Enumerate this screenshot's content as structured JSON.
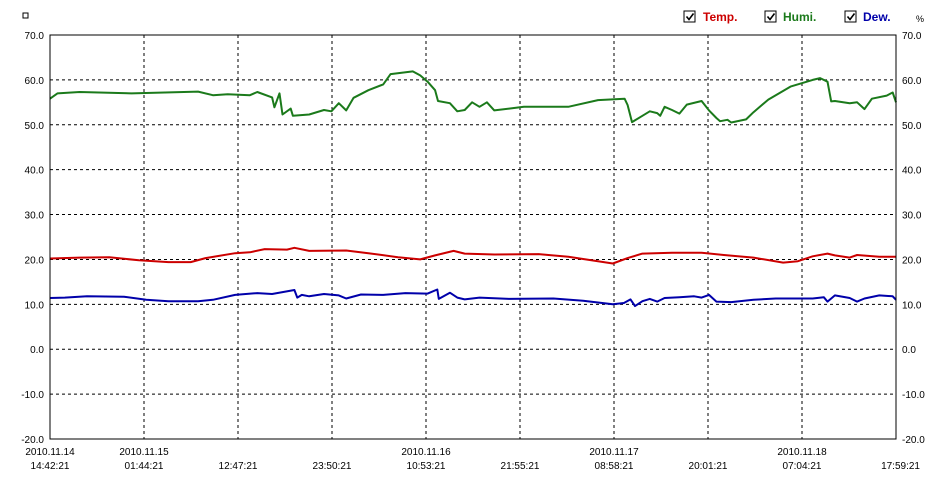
{
  "chart_data": {
    "type": "line",
    "ylim": [
      -20,
      70
    ],
    "y_ticks": [
      "70.0",
      "60.0",
      "50.0",
      "40.0",
      "30.0",
      "20.0",
      "10.0",
      "0.0",
      "-10.0",
      "-20.0"
    ],
    "right_unit": "%",
    "grid": true,
    "legend_position": "top-right",
    "x_range_hours": [
      0,
      114.25
    ],
    "x_ticks": [
      {
        "date": "2010.11.14",
        "time": "14:42:21"
      },
      {
        "date": "2010.11.15",
        "time": "01:44:21"
      },
      {
        "date": "",
        "time": "12:47:21"
      },
      {
        "date": "",
        "time": "23:50:21"
      },
      {
        "date": "2010.11.16",
        "time": "10:53:21"
      },
      {
        "date": "",
        "time": "21:55:21"
      },
      {
        "date": "2010.11.17",
        "time": "08:58:21"
      },
      {
        "date": "",
        "time": "20:01:21"
      },
      {
        "date": "2010.11.18",
        "time": "07:04:21"
      },
      {
        "date": "",
        "time": "17:59:21"
      }
    ],
    "series": [
      {
        "name": "Temp.",
        "color": "#cc0000",
        "checked": true,
        "points": [
          [
            0,
            20.2
          ],
          [
            4,
            20.4
          ],
          [
            8,
            20.5
          ],
          [
            12,
            19.8
          ],
          [
            16,
            19.4
          ],
          [
            19,
            19.4
          ],
          [
            21,
            20.3
          ],
          [
            25,
            21.4
          ],
          [
            27,
            21.6
          ],
          [
            29,
            22.3
          ],
          [
            32,
            22.2
          ],
          [
            33,
            22.6
          ],
          [
            35,
            21.9
          ],
          [
            40,
            22.0
          ],
          [
            43,
            21.4
          ],
          [
            47,
            20.5
          ],
          [
            50,
            20.0
          ],
          [
            52,
            20.9
          ],
          [
            54.5,
            21.9
          ],
          [
            56,
            21.3
          ],
          [
            60,
            21.1
          ],
          [
            66,
            21.2
          ],
          [
            70,
            20.6
          ],
          [
            76,
            19.1
          ],
          [
            78,
            20.3
          ],
          [
            80,
            21.3
          ],
          [
            84,
            21.5
          ],
          [
            88,
            21.5
          ],
          [
            91,
            21.0
          ],
          [
            95,
            20.4
          ],
          [
            99,
            19.3
          ],
          [
            101,
            19.6
          ],
          [
            103,
            20.7
          ],
          [
            105,
            21.3
          ],
          [
            106,
            20.9
          ],
          [
            108,
            20.4
          ],
          [
            109,
            21.0
          ],
          [
            112,
            20.6
          ],
          [
            114.25,
            20.6
          ]
        ]
      },
      {
        "name": "Humi.",
        "color": "#1b7a1b",
        "checked": true,
        "points": [
          [
            0,
            55.8
          ],
          [
            1,
            57.0
          ],
          [
            4,
            57.3
          ],
          [
            11,
            57.0
          ],
          [
            20,
            57.4
          ],
          [
            22,
            56.6
          ],
          [
            24,
            56.8
          ],
          [
            27,
            56.6
          ],
          [
            28,
            57.3
          ],
          [
            30,
            56.1
          ],
          [
            30.3,
            53.9
          ],
          [
            31,
            57.0
          ],
          [
            31.4,
            52.3
          ],
          [
            32.5,
            53.6
          ],
          [
            32.8,
            52.0
          ],
          [
            35,
            52.3
          ],
          [
            37,
            53.3
          ],
          [
            38,
            53.0
          ],
          [
            39,
            54.8
          ],
          [
            40,
            53.2
          ],
          [
            41,
            56.0
          ],
          [
            43,
            57.7
          ],
          [
            45,
            59.0
          ],
          [
            46,
            61.3
          ],
          [
            49,
            61.9
          ],
          [
            50,
            61.0
          ],
          [
            51,
            59.6
          ],
          [
            52,
            57.7
          ],
          [
            52.4,
            55.3
          ],
          [
            54,
            54.8
          ],
          [
            55,
            53.0
          ],
          [
            56,
            53.3
          ],
          [
            57,
            55.0
          ],
          [
            58,
            54.0
          ],
          [
            59,
            55.0
          ],
          [
            60,
            53.2
          ],
          [
            62,
            53.6
          ],
          [
            64,
            54.0
          ],
          [
            70,
            54.0
          ],
          [
            74,
            55.5
          ],
          [
            77.6,
            55.8
          ],
          [
            78,
            54.4
          ],
          [
            78.6,
            50.6
          ],
          [
            80,
            52.0
          ],
          [
            81,
            53.0
          ],
          [
            82,
            52.6
          ],
          [
            82.4,
            52.0
          ],
          [
            83,
            54.0
          ],
          [
            84,
            53.3
          ],
          [
            85,
            52.5
          ],
          [
            86,
            54.5
          ],
          [
            88,
            55.3
          ],
          [
            89,
            53.2
          ],
          [
            90,
            51.5
          ],
          [
            90.5,
            50.8
          ],
          [
            91.5,
            51.1
          ],
          [
            92,
            50.5
          ],
          [
            94,
            51.2
          ],
          [
            95,
            52.8
          ],
          [
            97,
            55.6
          ],
          [
            100,
            58.5
          ],
          [
            103,
            60.0
          ],
          [
            104,
            60.4
          ],
          [
            105,
            59.6
          ],
          [
            105.5,
            55.2
          ],
          [
            106,
            55.3
          ],
          [
            108,
            54.8
          ],
          [
            109,
            55.0
          ],
          [
            110,
            53.5
          ],
          [
            111,
            55.8
          ],
          [
            113,
            56.5
          ],
          [
            113.8,
            57.2
          ],
          [
            114.25,
            55.0
          ]
        ]
      },
      {
        "name": "Dew.",
        "color": "#0000aa",
        "checked": true,
        "points": [
          [
            0,
            11.4
          ],
          [
            2,
            11.5
          ],
          [
            5,
            11.8
          ],
          [
            10,
            11.7
          ],
          [
            13,
            11.0
          ],
          [
            16,
            10.7
          ],
          [
            20,
            10.7
          ],
          [
            22,
            11.0
          ],
          [
            25,
            12.1
          ],
          [
            28,
            12.5
          ],
          [
            30,
            12.3
          ],
          [
            33,
            13.2
          ],
          [
            33.4,
            11.5
          ],
          [
            34,
            12.1
          ],
          [
            35,
            11.8
          ],
          [
            37,
            12.3
          ],
          [
            39,
            12.0
          ],
          [
            40,
            11.3
          ],
          [
            42,
            12.2
          ],
          [
            45,
            12.1
          ],
          [
            48,
            12.5
          ],
          [
            51,
            12.4
          ],
          [
            52.3,
            13.3
          ],
          [
            52.5,
            11.2
          ],
          [
            54,
            12.6
          ],
          [
            55,
            11.5
          ],
          [
            56,
            11.1
          ],
          [
            58,
            11.5
          ],
          [
            62,
            11.2
          ],
          [
            68,
            11.3
          ],
          [
            72,
            10.8
          ],
          [
            76,
            10.0
          ],
          [
            77.5,
            10.3
          ],
          [
            78.4,
            11.1
          ],
          [
            79,
            9.6
          ],
          [
            80,
            10.7
          ],
          [
            81,
            11.2
          ],
          [
            82,
            10.6
          ],
          [
            83,
            11.4
          ],
          [
            85,
            11.6
          ],
          [
            87,
            11.8
          ],
          [
            88,
            11.5
          ],
          [
            89,
            12.1
          ],
          [
            90,
            10.6
          ],
          [
            92,
            10.5
          ],
          [
            95,
            11.0
          ],
          [
            98,
            11.3
          ],
          [
            103,
            11.3
          ],
          [
            104.5,
            11.6
          ],
          [
            105,
            10.6
          ],
          [
            106,
            12.0
          ],
          [
            108,
            11.4
          ],
          [
            109,
            10.6
          ],
          [
            110,
            11.3
          ],
          [
            112,
            12.0
          ],
          [
            113.8,
            11.8
          ],
          [
            114.25,
            11.0
          ]
        ]
      }
    ]
  }
}
